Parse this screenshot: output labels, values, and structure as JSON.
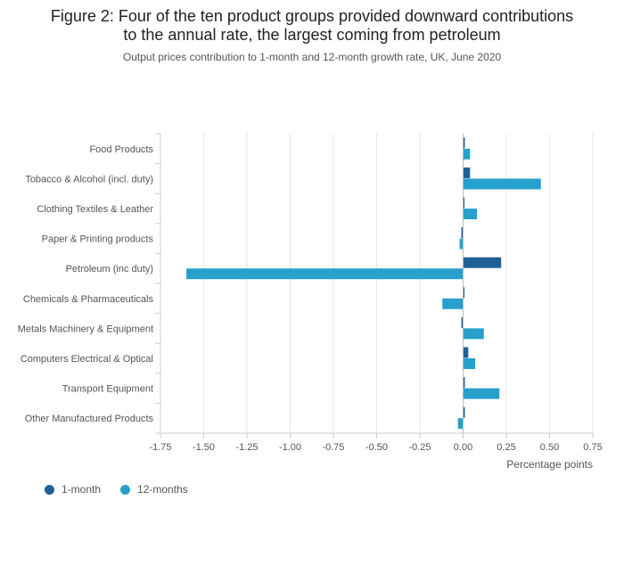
{
  "header": {
    "title_line1": "Figure 2: Four of the ten product groups provided downward contributions",
    "title_line2": "to the annual rate, the largest coming from petroleum",
    "subtitle": "Output prices contribution to 1-month and 12-month growth rate, UK, June 2020"
  },
  "chart_data": {
    "type": "bar",
    "orientation": "horizontal",
    "categories": [
      "Food Products",
      "Tobacco & Alcohol (incl. duty)",
      "Clothing Textiles & Leather",
      "Paper & Printing products",
      "Petroleum (inc duty)",
      "Chemicals & Pharmaceuticals",
      "Metals Machinery & Equipment",
      "Computers Electrical & Optical",
      "Transport Equipment",
      "Other Manufactured Products"
    ],
    "series": [
      {
        "name": "1-month",
        "color": "#206095",
        "values": [
          0.01,
          0.04,
          0.0,
          -0.01,
          0.22,
          0.0,
          -0.01,
          0.03,
          0.01,
          0.01
        ]
      },
      {
        "name": "12-months",
        "color": "#27a0cc",
        "values": [
          0.04,
          0.45,
          0.08,
          -0.02,
          -1.6,
          -0.12,
          0.12,
          0.07,
          0.21,
          -0.03
        ]
      }
    ],
    "xlabel": "Percentage points",
    "xlim": [
      -1.75,
      0.75
    ],
    "xticks": [
      -1.75,
      -1.5,
      -1.25,
      -1.0,
      -0.75,
      -0.5,
      -0.25,
      0.0,
      0.25,
      0.5,
      0.75
    ],
    "xtick_labels": [
      "-1.75",
      "-1.50",
      "-1.25",
      "-1.00",
      "-0.75",
      "-0.50",
      "-0.25",
      "0.00",
      "0.25",
      "0.50",
      "0.75"
    ],
    "grid": true,
    "legend_position": "bottom-left"
  }
}
